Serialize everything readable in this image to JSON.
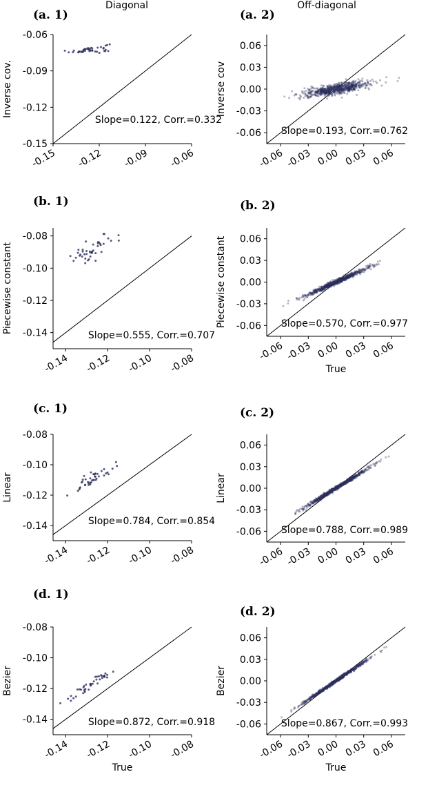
{
  "figure": {
    "column_titles": [
      "Diagonal",
      "Off-diagonal"
    ]
  },
  "chart_data": [
    {
      "panel": "(a. 1)",
      "type": "scatter",
      "column": "Diagonal",
      "ylabel": "Inverse cov.",
      "xlabel": "",
      "xlim": [
        -0.15,
        -0.06
      ],
      "ylim": [
        -0.15,
        -0.06
      ],
      "xticks": [
        "-0.15",
        "-0.12",
        "-0.09",
        "-0.06"
      ],
      "yticks": [
        "-0.15",
        "-0.12",
        "-0.09",
        "-0.06"
      ],
      "identity_line": true,
      "annotation": "Slope=0.122, Corr.=0.332",
      "slope": 0.122,
      "intercept": -0.057,
      "x_center": -0.126,
      "x_spread": 0.0065,
      "noise": 0.0017,
      "n": 42
    },
    {
      "panel": "(a. 2)",
      "type": "scatter",
      "column": "Off-diagonal",
      "ylabel": "Inverse cov",
      "xlabel": "",
      "xlim": [
        -0.075,
        0.075
      ],
      "ylim": [
        -0.075,
        0.075
      ],
      "xticks": [
        "-0.06",
        "-0.03",
        "0.00",
        "0.03",
        "0.06"
      ],
      "yticks": [
        "-0.06",
        "-0.03",
        "0.00",
        "0.03",
        "0.06"
      ],
      "identity_line": true,
      "annotation": "Slope=0.193, Corr.=0.762",
      "slope": 0.193,
      "intercept": 0.0,
      "x_center": 0.0,
      "x_spread": 0.018,
      "noise": 0.0035,
      "n": 700
    },
    {
      "panel": "(b. 1)",
      "type": "scatter",
      "column": "Diagonal",
      "ylabel": "Piecewise constant",
      "xlabel": "",
      "xlim": [
        -0.146,
        -0.08
      ],
      "ylim": [
        -0.15,
        -0.075
      ],
      "xticks": [
        "-0.14",
        "-0.12",
        "-0.10",
        "-0.08"
      ],
      "yticks": [
        "-0.14",
        "-0.12",
        "-0.10",
        "-0.08"
      ],
      "identity_line": true,
      "annotation": "Slope=0.555, Corr.=0.707",
      "slope": 0.555,
      "intercept": -0.0175,
      "x_center": -0.127,
      "x_spread": 0.0055,
      "noise": 0.0033,
      "n": 42
    },
    {
      "panel": "(b. 2)",
      "type": "scatter",
      "column": "Off-diagonal",
      "ylabel": "Piecewise constant",
      "xlabel": "True",
      "xlim": [
        -0.075,
        0.075
      ],
      "ylim": [
        -0.075,
        0.075
      ],
      "xticks": [
        "-0.06",
        "-0.03",
        "0.00",
        "0.03",
        "0.06"
      ],
      "yticks": [
        "-0.06",
        "-0.03",
        "0.00",
        "0.03",
        "0.06"
      ],
      "identity_line": true,
      "annotation": "Slope=0.570, Corr.=0.977",
      "slope": 0.57,
      "intercept": 0.0,
      "x_center": 0.0,
      "x_spread": 0.018,
      "noise": 0.0017,
      "n": 700
    },
    {
      "panel": "(c. 1)",
      "type": "scatter",
      "column": "Diagonal",
      "ylabel": "Linear",
      "xlabel": "",
      "xlim": [
        -0.146,
        -0.08
      ],
      "ylim": [
        -0.15,
        -0.08
      ],
      "xticks": [
        "-0.14",
        "-0.12",
        "-0.10",
        "-0.08"
      ],
      "yticks": [
        "-0.14",
        "-0.12",
        "-0.10",
        "-0.08"
      ],
      "identity_line": true,
      "annotation": "Slope=0.784, Corr.=0.854",
      "slope": 0.784,
      "intercept": -0.0092,
      "x_center": -0.127,
      "x_spread": 0.0055,
      "noise": 0.0022,
      "n": 42
    },
    {
      "panel": "(c. 2)",
      "type": "scatter",
      "column": "Off-diagonal",
      "ylabel": "Linear",
      "xlabel": "",
      "xlim": [
        -0.075,
        0.075
      ],
      "ylim": [
        -0.075,
        0.075
      ],
      "xticks": [
        "-0.06",
        "-0.03",
        "0.00",
        "0.03",
        "0.06"
      ],
      "yticks": [
        "-0.06",
        "-0.03",
        "0.00",
        "0.03",
        "0.06"
      ],
      "identity_line": true,
      "annotation": "Slope=0.788, Corr.=0.989",
      "slope": 0.788,
      "intercept": 0.0,
      "x_center": 0.0,
      "x_spread": 0.018,
      "noise": 0.0014,
      "n": 700
    },
    {
      "panel": "(d. 1)",
      "type": "scatter",
      "column": "Diagonal",
      "ylabel": "Bezier",
      "xlabel": "True",
      "xlim": [
        -0.146,
        -0.08
      ],
      "ylim": [
        -0.15,
        -0.08
      ],
      "xticks": [
        "-0.14",
        "-0.12",
        "-0.10",
        "-0.08"
      ],
      "yticks": [
        "-0.14",
        "-0.12",
        "-0.10",
        "-0.08"
      ],
      "identity_line": true,
      "annotation": "Slope=0.872, Corr.=0.918",
      "slope": 0.872,
      "intercept": -0.0055,
      "x_center": -0.127,
      "x_spread": 0.0055,
      "noise": 0.0018,
      "n": 42
    },
    {
      "panel": "(d. 2)",
      "type": "scatter",
      "column": "Off-diagonal",
      "ylabel": "Bezier",
      "xlabel": "True",
      "xlim": [
        -0.075,
        0.075
      ],
      "ylim": [
        -0.075,
        0.075
      ],
      "xticks": [
        "-0.06",
        "-0.03",
        "0.00",
        "0.03",
        "0.06"
      ],
      "yticks": [
        "-0.06",
        "-0.03",
        "0.00",
        "0.03",
        "0.06"
      ],
      "identity_line": true,
      "annotation": "Slope=0.867, Corr.=0.993",
      "slope": 0.867,
      "intercept": 0.0,
      "x_center": 0.0,
      "x_spread": 0.018,
      "noise": 0.0012,
      "n": 700
    }
  ]
}
